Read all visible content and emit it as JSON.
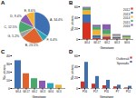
{
  "chart_data": [
    {
      "type": "pie",
      "title": "A",
      "categories": [
        "A",
        "F",
        "B",
        "G",
        "C",
        "D",
        "E"
      ],
      "values": [
        34.4,
        6.4,
        23.5,
        5.2,
        12.5,
        9.4,
        8.6
      ],
      "value_labels": [
        "A, 34.4%",
        "F, 6.4%",
        "B, 23.5%",
        "G, 5.2%",
        "C, 12.5%",
        "D, 9.4%",
        "E, 8.6%"
      ],
      "colors": [
        "#3e6fb0",
        "#2aa7b8",
        "#e0632d",
        "#9e9e9e",
        "#4aa86c",
        "#8a5bb0",
        "#f2b233"
      ]
    },
    {
      "type": "bar",
      "title": "B",
      "xlabel": "Genotype",
      "ylabel": "No. strains",
      "categories": [
        "GII.4",
        "GII.17",
        "GII.2",
        "GII.3",
        "GII.6"
      ],
      "series": [
        {
          "name": "2012",
          "color": "#d7301f",
          "values": [
            30,
            2,
            4,
            1,
            0
          ]
        },
        {
          "name": "2013",
          "color": "#3e6fb0",
          "values": [
            15,
            5,
            2,
            3,
            1
          ]
        },
        {
          "name": "2014",
          "color": "#f2b233",
          "values": [
            8,
            10,
            3,
            2,
            2
          ]
        },
        {
          "name": "2015",
          "color": "#4aa86c",
          "values": [
            4,
            6,
            8,
            1,
            3
          ]
        },
        {
          "name": "2016",
          "color": "#8a5bb0",
          "values": [
            2,
            3,
            10,
            2,
            1
          ]
        }
      ],
      "stacked": true,
      "legend": "top-right",
      "ylim": [
        0,
        60
      ],
      "yticks": [
        0,
        20,
        40,
        60
      ]
    },
    {
      "type": "bar",
      "title": "C",
      "xlabel": "Genotype",
      "ylabel": "No. strains",
      "categories": [
        "GII.4",
        "GII.17",
        "GII.2",
        "GII.3",
        "GII.6",
        "GI.3"
      ],
      "values": [
        34,
        18,
        12,
        9,
        6,
        4
      ],
      "colors": [
        "#3e6fb0",
        "#e0632d",
        "#4aa86c",
        "#8a5bb0",
        "#2aa7b8",
        "#f2b233"
      ],
      "ylim": [
        0,
        40
      ],
      "yticks": [
        0,
        10,
        20,
        30,
        40
      ]
    },
    {
      "type": "bar",
      "title": "D",
      "xlabel": "Genotype",
      "ylabel": "No. strains",
      "categories": [
        "P16",
        "P17",
        "P31",
        "P7",
        "P12"
      ],
      "series": [
        {
          "name": "Outbreak",
          "color": "#d7301f",
          "values": [
            12,
            8,
            5,
            3,
            1
          ]
        },
        {
          "name": "Sporadic",
          "color": "#3e6fb0",
          "values": [
            48,
            22,
            15,
            6,
            4
          ]
        }
      ],
      "stacked": false,
      "legend": "top-right",
      "ylim": [
        0,
        60
      ],
      "yticks": [
        0,
        20,
        40,
        60
      ]
    }
  ]
}
